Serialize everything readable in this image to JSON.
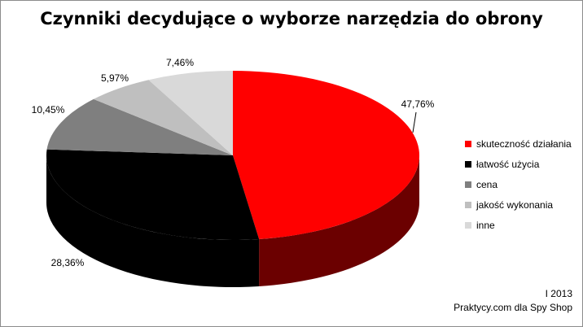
{
  "chart_data": {
    "type": "pie",
    "title": "Czynniki decydujące o wyborze narzędzia do obrony",
    "categories": [
      "skuteczność działania",
      "łatwość użycia",
      "cena",
      "jakość wykonania",
      "inne"
    ],
    "values": [
      47.76,
      28.36,
      10.45,
      5.97,
      7.46
    ],
    "value_labels": [
      "47,76%",
      "28,36%",
      "10,45%",
      "5,97%",
      "7,46%"
    ],
    "colors": [
      "#ff0000",
      "#000000",
      "#7f7f7f",
      "#bfbfbf",
      "#d9d9d9"
    ],
    "three_d": true,
    "legend_position": "right"
  },
  "legend": [
    {
      "label": "skuteczność działania",
      "color": "#ff0000"
    },
    {
      "label": "łatwość użycia",
      "color": "#000000"
    },
    {
      "label": "cena",
      "color": "#7f7f7f"
    },
    {
      "label": "jakość wykonania",
      "color": "#bfbfbf"
    },
    {
      "label": "inne",
      "color": "#d9d9d9"
    }
  ],
  "credit": {
    "date": "I 2013",
    "source": "Praktycy.com dla Spy Shop"
  }
}
